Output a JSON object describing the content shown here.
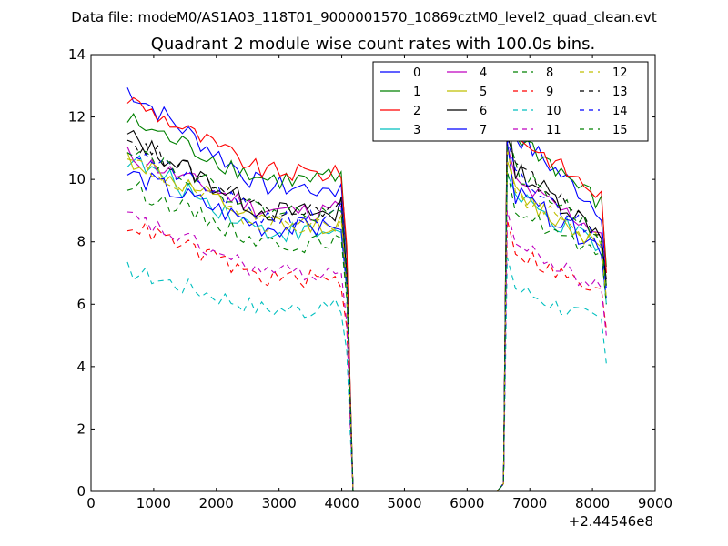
{
  "figure": {
    "suptitle": "Data file: modeM0/AS1A03_118T01_9000001570_10869cztM0_level2_quad_clean.evt",
    "x_offset_label": "+2.44546e8"
  },
  "chart_data": {
    "type": "line",
    "title": "Quadrant 2 module wise count rates with 100.0s bins.",
    "xlabel": "",
    "ylabel": "",
    "xlim": [
      0,
      9000
    ],
    "ylim": [
      0,
      14
    ],
    "xticks": [
      0,
      1000,
      2000,
      3000,
      4000,
      5000,
      6000,
      7000,
      8000,
      9000
    ],
    "yticks": [
      0,
      2,
      4,
      6,
      8,
      10,
      12,
      14
    ],
    "legend_position": "top-right",
    "legend_columns": 4,
    "series": [
      {
        "name": "0",
        "color": "#0000ff",
        "dash": "solid",
        "start": 12.9,
        "seg2_start": 11.6,
        "level2": 10.0,
        "noise": 0.35,
        "trend_end": -2.2,
        "peak": 12.0,
        "end2": 7.0
      },
      {
        "name": "1",
        "color": "#008000",
        "dash": "solid",
        "start": 11.9,
        "seg2_start": 11.6,
        "level2": 10.2,
        "noise": 0.35,
        "trend_end": -2.0,
        "peak": 11.9,
        "end2": 7.2
      },
      {
        "name": "2",
        "color": "#ff0000",
        "dash": "solid",
        "start": 12.6,
        "seg2_start": 11.6,
        "level2": 10.5,
        "noise": 0.3,
        "trend_end": -2.4,
        "peak": 12.5,
        "end2": 7.0
      },
      {
        "name": "3",
        "color": "#00bfbf",
        "dash": "solid",
        "start": 10.7,
        "seg2_start": 9.5,
        "level2": 8.6,
        "noise": 0.35,
        "trend_end": -2.4,
        "peak": 10.2,
        "end2": 6.0
      },
      {
        "name": "4",
        "color": "#bf00bf",
        "dash": "solid",
        "start": 10.8,
        "seg2_start": 10.0,
        "level2": 9.2,
        "noise": 0.3,
        "trend_end": -1.8,
        "peak": 11.1,
        "end2": 6.6
      },
      {
        "name": "5",
        "color": "#bfbf00",
        "dash": "solid",
        "start": 10.7,
        "seg2_start": 9.6,
        "level2": 8.8,
        "noise": 0.35,
        "trend_end": -2.3,
        "peak": 10.6,
        "end2": 6.6
      },
      {
        "name": "6",
        "color": "#000000",
        "dash": "solid",
        "start": 11.4,
        "seg2_start": 10.5,
        "level2": 9.2,
        "noise": 0.35,
        "trend_end": -2.2,
        "peak": 12.3,
        "end2": 6.8
      },
      {
        "name": "7",
        "color": "#0000ff",
        "dash": "solid",
        "start": 10.2,
        "seg2_start": 9.6,
        "level2": 8.7,
        "noise": 0.35,
        "trend_end": -2.2,
        "peak": 11.2,
        "end2": 6.2
      },
      {
        "name": "8",
        "color": "#008000",
        "dash": "dashed",
        "start": 9.8,
        "seg2_start": 9.2,
        "level2": 8.2,
        "noise": 0.3,
        "trend_end": -2.0,
        "peak": 10.3,
        "end2": 6.0
      },
      {
        "name": "9",
        "color": "#ff0000",
        "dash": "dashed",
        "start": 8.6,
        "seg2_start": 7.8,
        "level2": 7.0,
        "noise": 0.3,
        "trend_end": -1.6,
        "peak": 8.7,
        "end2": 5.2
      },
      {
        "name": "10",
        "color": "#00bfbf",
        "dash": "dashed",
        "start": 7.1,
        "seg2_start": 6.6,
        "level2": 6.0,
        "noise": 0.3,
        "trend_end": -1.4,
        "peak": 7.5,
        "end2": 4.1
      },
      {
        "name": "11",
        "color": "#bf00bf",
        "dash": "dashed",
        "start": 8.8,
        "seg2_start": 8.0,
        "level2": 7.2,
        "noise": 0.3,
        "trend_end": -1.6,
        "peak": 9.0,
        "end2": 5.0
      },
      {
        "name": "12",
        "color": "#bfbf00",
        "dash": "dashed",
        "start": 10.6,
        "seg2_start": 9.6,
        "level2": 8.8,
        "noise": 0.3,
        "trend_end": -2.0,
        "peak": 11.0,
        "end2": 6.2
      },
      {
        "name": "13",
        "color": "#000000",
        "dash": "dashed",
        "start": 11.3,
        "seg2_start": 10.5,
        "level2": 9.3,
        "noise": 0.3,
        "trend_end": -2.0,
        "peak": 11.4,
        "end2": 6.6
      },
      {
        "name": "14",
        "color": "#0000ff",
        "dash": "dashed",
        "start": 11.0,
        "seg2_start": 10.2,
        "level2": 9.0,
        "noise": 0.3,
        "trend_end": -2.0,
        "peak": 11.3,
        "end2": 6.5
      },
      {
        "name": "15",
        "color": "#008000",
        "dash": "dashed",
        "start": 11.1,
        "seg2_start": 10.4,
        "level2": 9.2,
        "noise": 0.3,
        "trend_end": -2.0,
        "peak": 11.5,
        "end2": 6.6
      }
    ],
    "segments": {
      "seg1_x": [
        580,
        3990
      ],
      "drop1_x": [
        4080,
        4180
      ],
      "gap_x": [
        4180,
        6480
      ],
      "rise_x": [
        6480,
        6680
      ],
      "seg2_x": [
        6680,
        8220
      ]
    }
  }
}
